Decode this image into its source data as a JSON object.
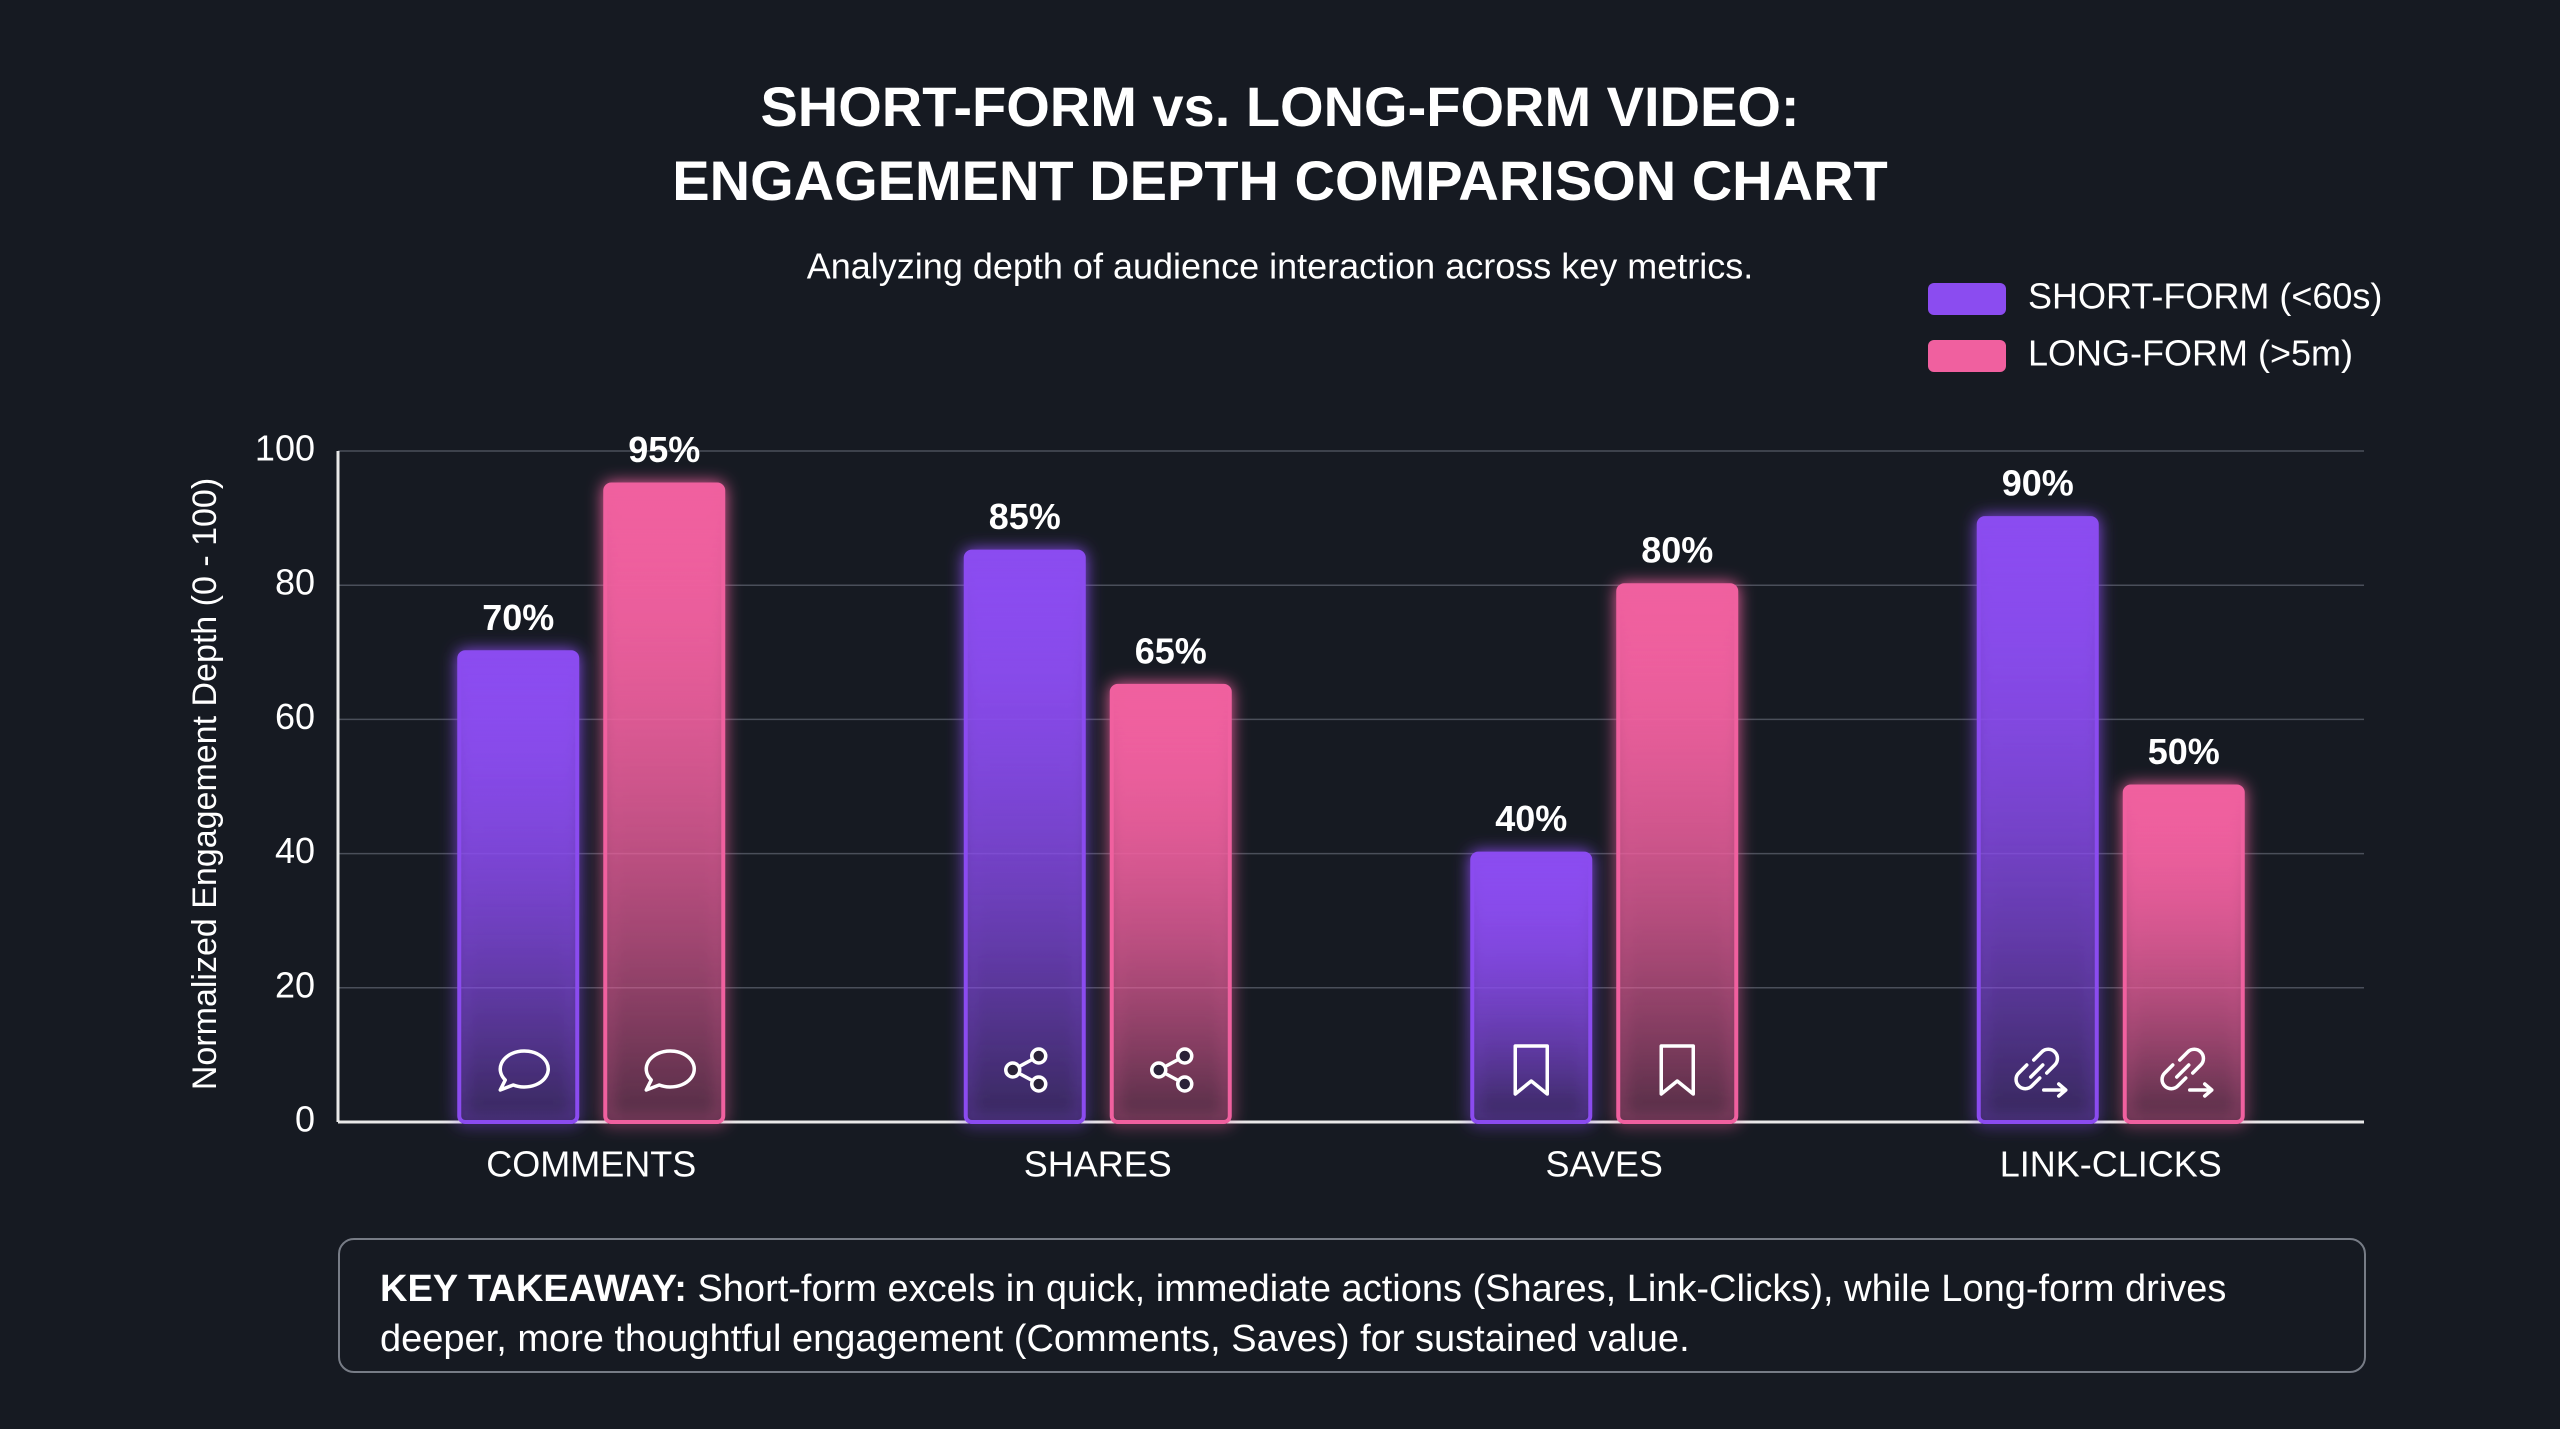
{
  "chart_data": {
    "type": "bar",
    "title": [
      "SHORT-FORM vs. LONG-FORM VIDEO:",
      "ENGAGEMENT DEPTH COMPARISON CHART"
    ],
    "subtitle": "Analyzing depth of audience interaction across key metrics.",
    "y_label": "Normalized Engagement Depth (0 - 100)",
    "categories": [
      "COMMENTS",
      "SHARES",
      "SAVES",
      "LINK-CLICKS"
    ],
    "series": [
      {
        "name": "SHORT-FORM (<60s)",
        "color": "#8b4cf0",
        "values": [
          70,
          85,
          40,
          90
        ],
        "value_labels": [
          "70%",
          "85%",
          "40%",
          "90%"
        ]
      },
      {
        "name": "LONG-FORM (>5m)",
        "color": "#f0609f",
        "values": [
          95,
          65,
          80,
          50
        ],
        "value_labels": [
          "95%",
          "65%",
          "80%",
          "50%"
        ]
      }
    ],
    "ylim": [
      0,
      100
    ],
    "yticks": [
      0,
      20,
      40,
      60,
      80,
      100
    ],
    "grid": true,
    "legend": "top-right",
    "annotation": {
      "label": "KEY TAKEAWAY:",
      "text": "Short-form excels in quick, immediate actions (Shares, Link-Clicks), while Long-form drives deeper, more thoughtful engagement (Comments, Saves) for sustained value."
    }
  }
}
